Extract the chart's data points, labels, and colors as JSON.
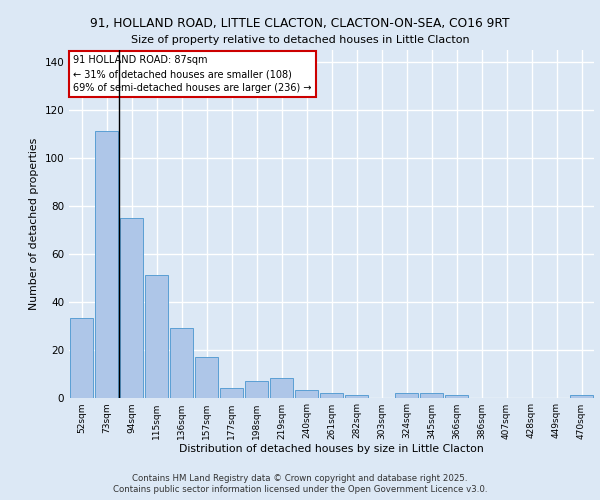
{
  "title1": "91, HOLLAND ROAD, LITTLE CLACTON, CLACTON-ON-SEA, CO16 9RT",
  "title2": "Size of property relative to detached houses in Little Clacton",
  "xlabel": "Distribution of detached houses by size in Little Clacton",
  "ylabel": "Number of detached properties",
  "categories": [
    "52sqm",
    "73sqm",
    "94sqm",
    "115sqm",
    "136sqm",
    "157sqm",
    "177sqm",
    "198sqm",
    "219sqm",
    "240sqm",
    "261sqm",
    "282sqm",
    "303sqm",
    "324sqm",
    "345sqm",
    "366sqm",
    "386sqm",
    "407sqm",
    "428sqm",
    "449sqm",
    "470sqm"
  ],
  "values": [
    33,
    111,
    75,
    51,
    29,
    17,
    4,
    7,
    8,
    3,
    2,
    1,
    0,
    2,
    2,
    1,
    0,
    0,
    0,
    0,
    1
  ],
  "bar_color": "#aec6e8",
  "bar_edge_color": "#5a9fd4",
  "vline_x": 1.5,
  "vline_color": "#000000",
  "annotation_text": "91 HOLLAND ROAD: 87sqm\n← 31% of detached houses are smaller (108)\n69% of semi-detached houses are larger (236) →",
  "annotation_box_color": "#ffffff",
  "annotation_box_edge": "#cc0000",
  "background_color": "#dce8f5",
  "plot_bg_color": "#dce8f5",
  "grid_color": "#ffffff",
  "ylim": [
    0,
    145
  ],
  "yticks": [
    0,
    20,
    40,
    60,
    80,
    100,
    120,
    140
  ],
  "footer1": "Contains HM Land Registry data © Crown copyright and database right 2025.",
  "footer2": "Contains public sector information licensed under the Open Government Licence v3.0."
}
